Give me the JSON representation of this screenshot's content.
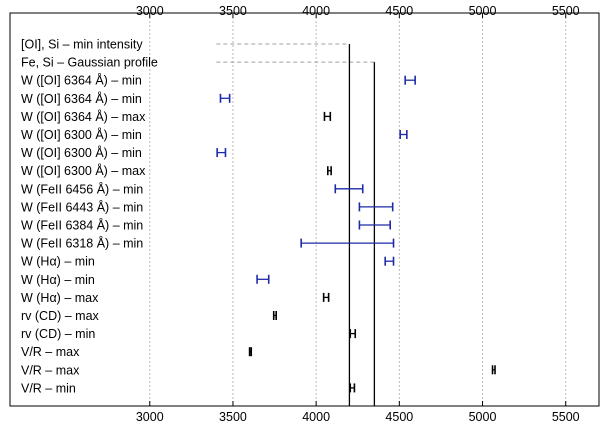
{
  "chart_data": {
    "type": "errorbar-range",
    "xlim": [
      2160,
      5700
    ],
    "xticks": [
      3000,
      3500,
      4000,
      4500,
      5000,
      5500
    ],
    "vertical_lines": [
      {
        "name": "min intensity",
        "x": 4200,
        "color": "#000000"
      },
      {
        "name": "gaussian profile",
        "x": 4350,
        "color": "#000000"
      }
    ],
    "reference_lines": [
      {
        "row": 0,
        "from": 3400,
        "to": 4200
      },
      {
        "row": 1,
        "from": 3400,
        "to": 4350
      }
    ],
    "rows": [
      {
        "label": "[OI], Si – min intensity",
        "points": []
      },
      {
        "label": "Fe, Si – Gaussian profile",
        "points": []
      },
      {
        "label": "W ([OI] 6364 Å) – min",
        "points": [
          {
            "lo": 4535,
            "hi": 4595,
            "color": "#1f2aa8"
          }
        ]
      },
      {
        "label": "W ([OI] 6364 Å) – min",
        "points": [
          {
            "lo": 3425,
            "hi": 3480,
            "color": "#1f2aa8"
          }
        ]
      },
      {
        "label": "W ([OI] 6364 Å) – max",
        "points": [
          {
            "lo": 4050,
            "hi": 4085,
            "color": "#000000"
          }
        ]
      },
      {
        "label": "W ([OI] 6300 Å) – min",
        "points": [
          {
            "lo": 4505,
            "hi": 4545,
            "color": "#1f2aa8"
          }
        ]
      },
      {
        "label": "W ([OI] 6300 Å) – min",
        "points": [
          {
            "lo": 3405,
            "hi": 3455,
            "color": "#1f2aa8"
          }
        ]
      },
      {
        "label": "W ([OI] 6300 Å) – max",
        "points": [
          {
            "lo": 4070,
            "hi": 4090,
            "color": "#000000"
          }
        ]
      },
      {
        "label": "W (FeII 6456 Å) – min",
        "points": [
          {
            "lo": 4115,
            "hi": 4280,
            "color": "#1f2aa8"
          }
        ]
      },
      {
        "label": "W (FeII 6443 Å) – min",
        "points": [
          {
            "lo": 4260,
            "hi": 4460,
            "color": "#1f2aa8"
          }
        ]
      },
      {
        "label": "W (FeII 6384 Å) – min",
        "points": [
          {
            "lo": 4260,
            "hi": 4445,
            "color": "#1f2aa8"
          }
        ]
      },
      {
        "label": "W (FeII 6318 Å) – min",
        "points": [
          {
            "lo": 3910,
            "hi": 4465,
            "color": "#1f2aa8"
          }
        ]
      },
      {
        "label": "W (Hα) – min",
        "points": [
          {
            "lo": 4415,
            "hi": 4465,
            "color": "#1f2aa8"
          }
        ]
      },
      {
        "label": "W (Hα) – min",
        "points": [
          {
            "lo": 3645,
            "hi": 3715,
            "color": "#1f2aa8"
          }
        ]
      },
      {
        "label": "W (Hα) – max",
        "points": [
          {
            "lo": 4045,
            "hi": 4075,
            "color": "#000000"
          }
        ]
      },
      {
        "label": "rv (CD) – max",
        "points": [
          {
            "lo": 3745,
            "hi": 3760,
            "color": "#000000"
          }
        ]
      },
      {
        "label": "rv (CD) – min",
        "points": [
          {
            "lo": 4205,
            "hi": 4235,
            "color": "#000000"
          }
        ]
      },
      {
        "label": "V/R – max",
        "points": [
          {
            "lo": 3600,
            "hi": 3610,
            "color": "#000000"
          }
        ]
      },
      {
        "label": "V/R – max",
        "points": [
          {
            "lo": 5060,
            "hi": 5075,
            "color": "#000000"
          }
        ]
      },
      {
        "label": "V/R – min",
        "points": [
          {
            "lo": 4205,
            "hi": 4230,
            "color": "#000000"
          }
        ]
      }
    ]
  }
}
